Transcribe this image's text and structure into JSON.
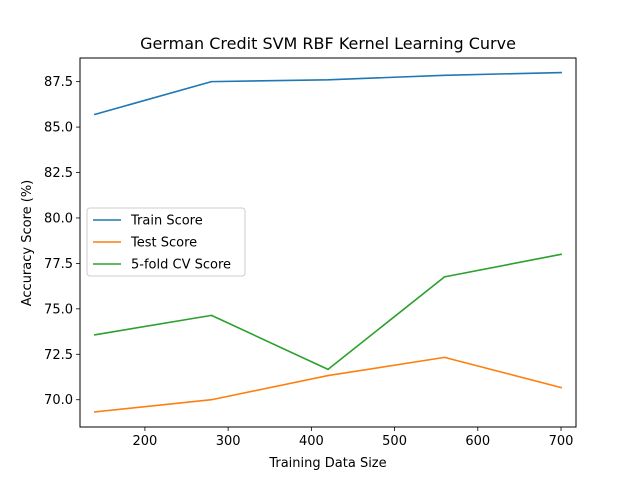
{
  "chart_data": {
    "type": "line",
    "title": "German Credit SVM RBF Kernel Learning Curve",
    "xlabel": "Training Data Size",
    "ylabel": "Accuracy Score (%)",
    "xlim": [
      122,
      718
    ],
    "ylim": [
      68.5,
      88.8
    ],
    "xticks": [
      200,
      300,
      400,
      500,
      600,
      700
    ],
    "yticks": [
      70.0,
      72.5,
      75.0,
      77.5,
      80.0,
      82.5,
      85.0,
      87.5
    ],
    "x": [
      140,
      280,
      420,
      560,
      700
    ],
    "series": [
      {
        "name": "Train Score",
        "color": "#1f77b4",
        "values": [
          85.7,
          87.5,
          87.6,
          87.85,
          88.0
        ]
      },
      {
        "name": "Test Score",
        "color": "#ff7f0e",
        "values": [
          69.33,
          70.0,
          71.33,
          72.33,
          70.67
        ]
      },
      {
        "name": "5-fold CV Score",
        "color": "#2ca02c",
        "values": [
          73.57,
          74.64,
          71.67,
          76.76,
          78.0
        ]
      }
    ],
    "grid": false,
    "legend_position": "center-left"
  }
}
